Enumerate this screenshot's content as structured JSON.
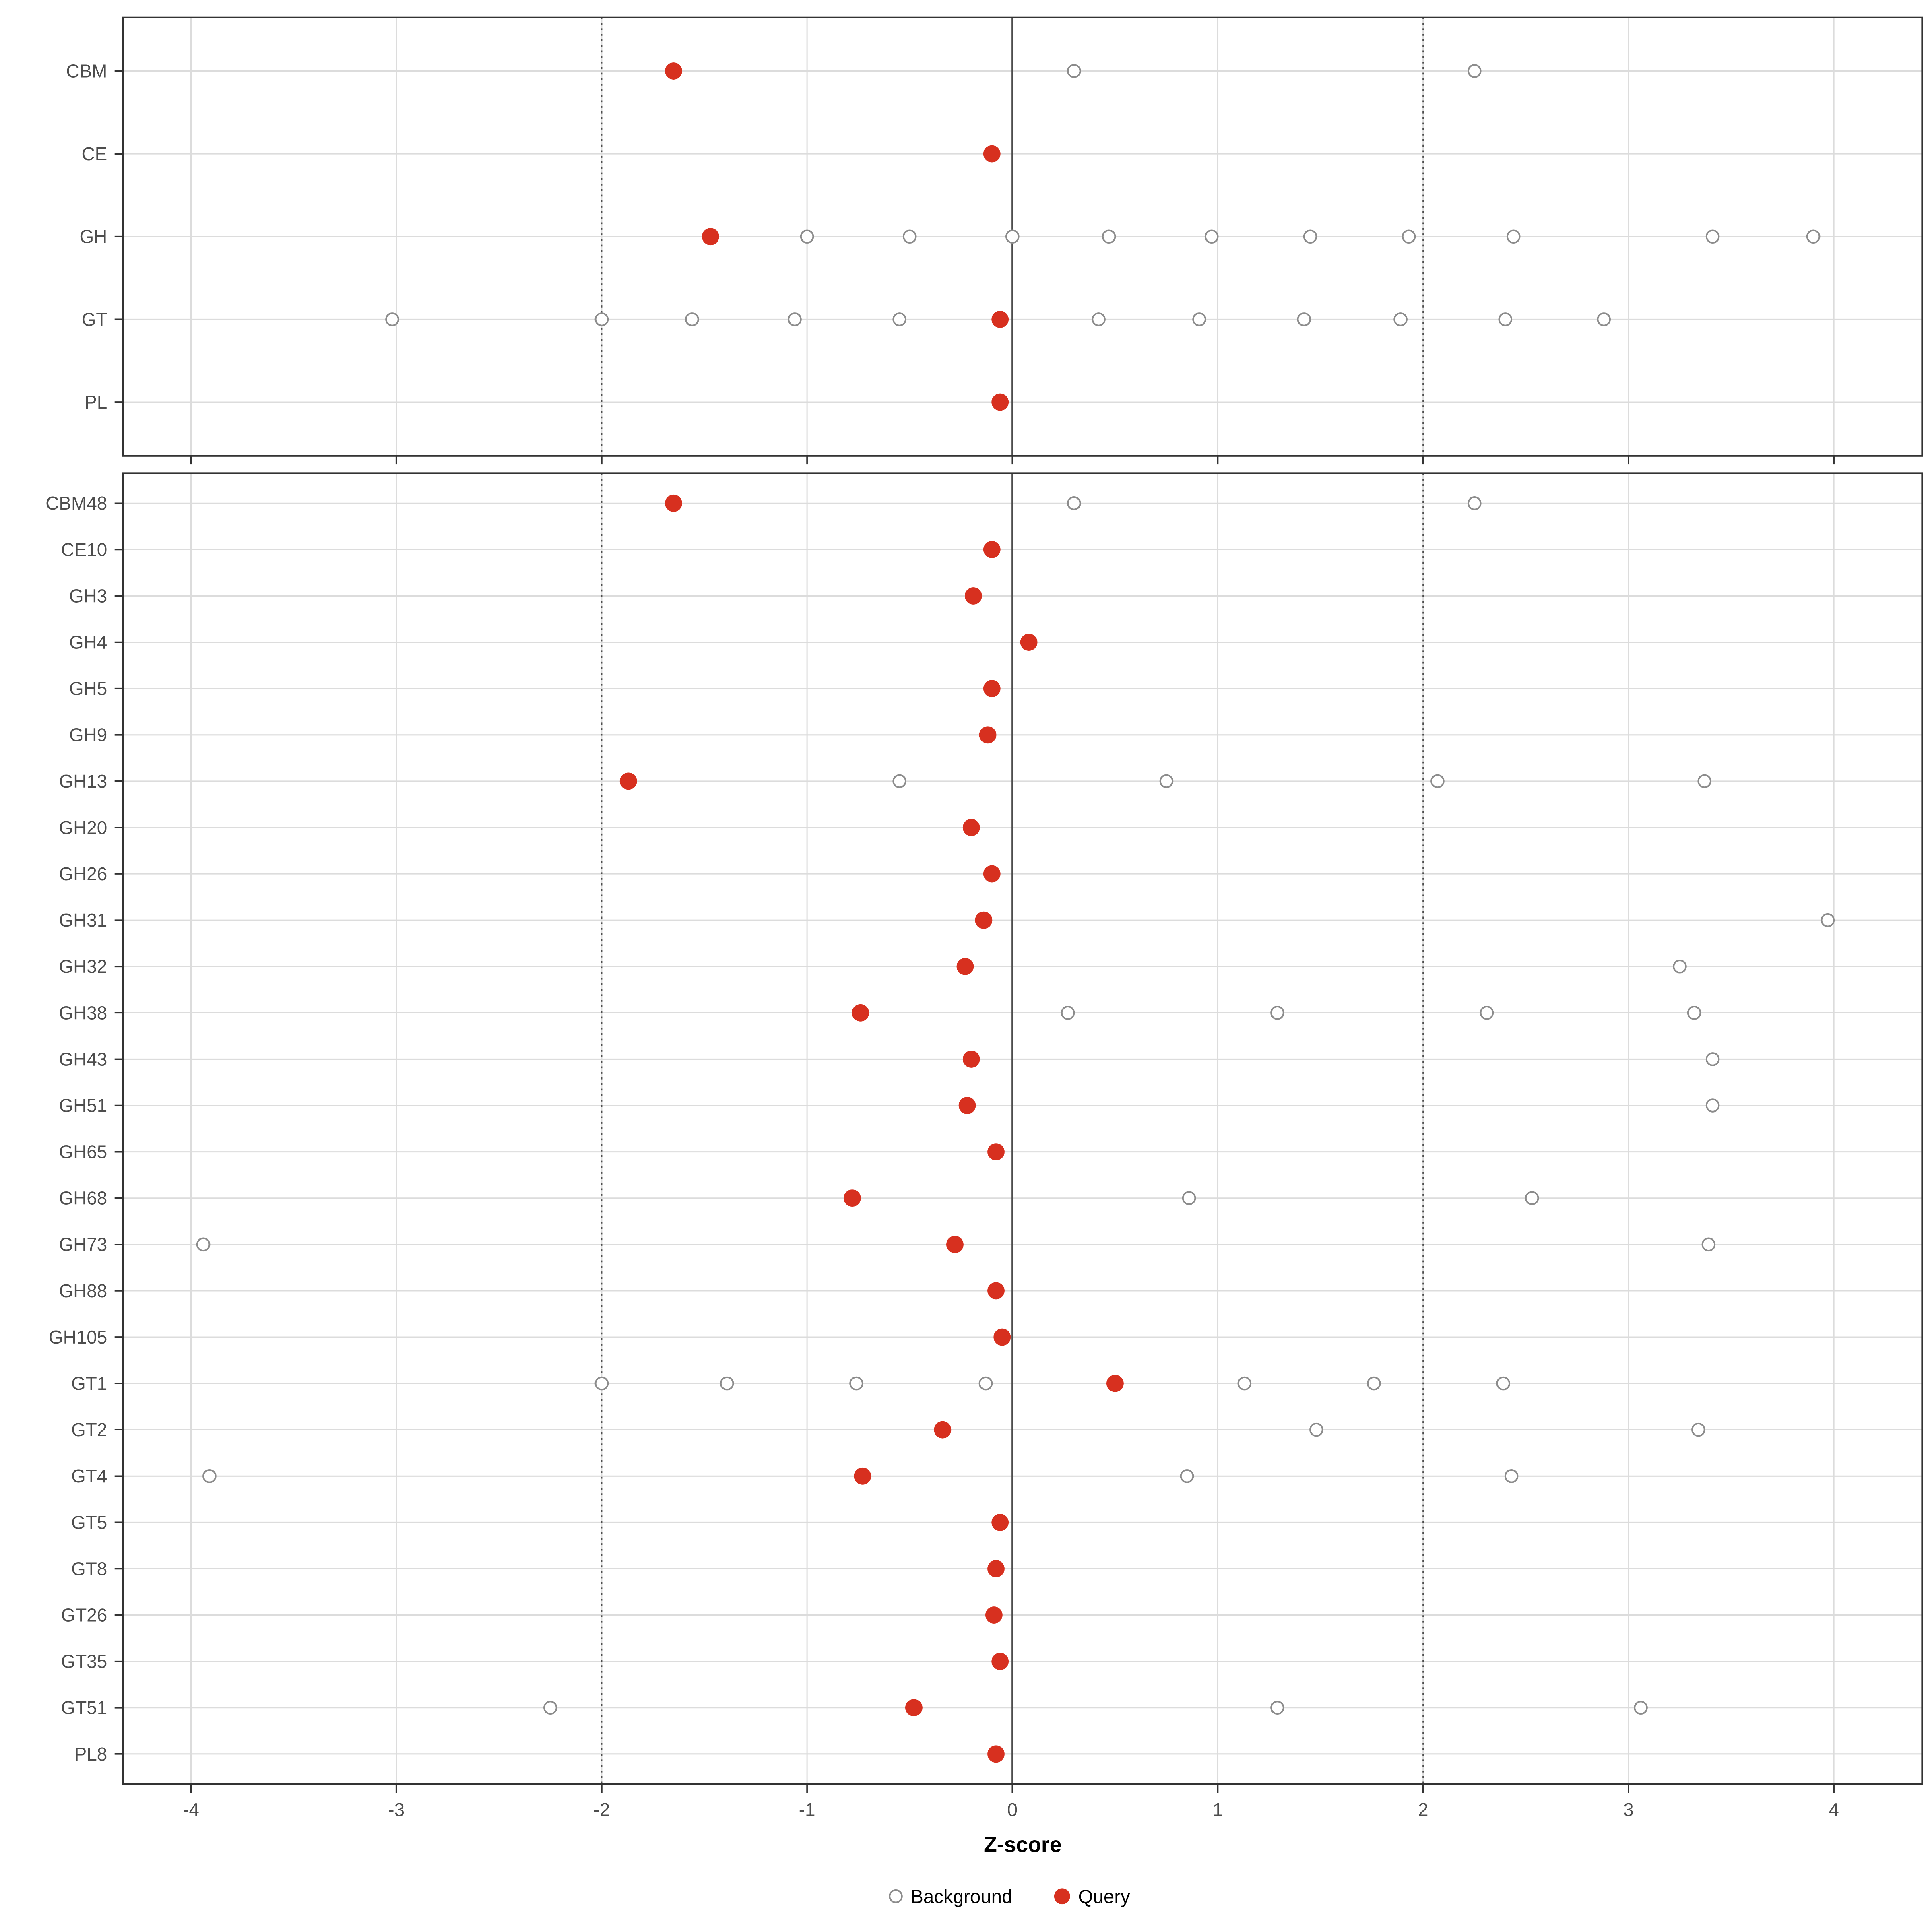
{
  "chart_data": {
    "type": "scatter",
    "title": "",
    "xlabel": "Z-score",
    "x_ticks": [
      -4,
      -3,
      -2,
      -1,
      0,
      1,
      2,
      3,
      4
    ],
    "x_domain": [
      -4.33,
      4.43
    ],
    "grid": true,
    "reference_lines": {
      "solid": [
        0
      ],
      "dotted": [
        -2,
        2
      ]
    },
    "legend": {
      "position": "bottom-center",
      "background_label": "Background",
      "query_label": "Query"
    },
    "colors": {
      "query": "#D7301F",
      "background_stroke": "#8C8C8C",
      "grid": "#DCDCDC",
      "ref_line": "#4D4D4D",
      "border": "#333333",
      "axis_text": "#4D4D4D"
    },
    "panels": [
      {
        "name": "groups",
        "rows": [
          {
            "label": "CBM",
            "query": -1.65,
            "background": [
              0.3,
              2.25
            ]
          },
          {
            "label": "CE",
            "query": -0.1,
            "background": []
          },
          {
            "label": "GH",
            "query": -1.47,
            "background": [
              -1.0,
              -0.5,
              0.0,
              0.47,
              0.97,
              1.45,
              1.93,
              2.44,
              3.41,
              3.9
            ]
          },
          {
            "label": "GT",
            "query": -0.06,
            "background": [
              -3.02,
              -2.0,
              -1.56,
              -1.06,
              -0.55,
              0.42,
              0.91,
              1.42,
              1.89,
              2.4,
              2.88
            ]
          },
          {
            "label": "PL",
            "query": -0.06,
            "background": []
          }
        ]
      },
      {
        "name": "families",
        "rows": [
          {
            "label": "CBM48",
            "query": -1.65,
            "background": [
              0.3,
              2.25
            ]
          },
          {
            "label": "CE10",
            "query": -0.1,
            "background": []
          },
          {
            "label": "GH3",
            "query": -0.19,
            "background": []
          },
          {
            "label": "GH4",
            "query": 0.08,
            "background": []
          },
          {
            "label": "GH5",
            "query": -0.1,
            "background": []
          },
          {
            "label": "GH9",
            "query": -0.12,
            "background": []
          },
          {
            "label": "GH13",
            "query": -1.87,
            "background": [
              -0.55,
              0.75,
              2.07,
              3.37
            ]
          },
          {
            "label": "GH20",
            "query": -0.2,
            "background": []
          },
          {
            "label": "GH26",
            "query": -0.1,
            "background": []
          },
          {
            "label": "GH31",
            "query": -0.14,
            "background": [
              3.97
            ]
          },
          {
            "label": "GH32",
            "query": -0.23,
            "background": [
              3.25
            ]
          },
          {
            "label": "GH38",
            "query": -0.74,
            "background": [
              0.27,
              1.29,
              2.31,
              3.32
            ]
          },
          {
            "label": "GH43",
            "query": -0.2,
            "background": [
              3.41
            ]
          },
          {
            "label": "GH51",
            "query": -0.22,
            "background": [
              3.41
            ]
          },
          {
            "label": "GH65",
            "query": -0.08,
            "background": []
          },
          {
            "label": "GH68",
            "query": -0.78,
            "background": [
              0.86,
              2.53
            ]
          },
          {
            "label": "GH73",
            "query": -0.28,
            "background": [
              -3.94,
              3.39
            ]
          },
          {
            "label": "GH88",
            "query": -0.08,
            "background": []
          },
          {
            "label": "GH105",
            "query": -0.05,
            "background": []
          },
          {
            "label": "GT1",
            "query": 0.5,
            "background": [
              -2.0,
              -1.39,
              -0.76,
              -0.13,
              1.13,
              1.76,
              2.39
            ]
          },
          {
            "label": "GT2",
            "query": -0.34,
            "background": [
              1.48,
              3.34
            ]
          },
          {
            "label": "GT4",
            "query": -0.73,
            "background": [
              -3.91,
              0.85,
              2.43
            ]
          },
          {
            "label": "GT5",
            "query": -0.06,
            "background": []
          },
          {
            "label": "GT8",
            "query": -0.08,
            "background": []
          },
          {
            "label": "GT26",
            "query": -0.09,
            "background": []
          },
          {
            "label": "GT35",
            "query": -0.06,
            "background": []
          },
          {
            "label": "GT51",
            "query": -0.48,
            "background": [
              -2.25,
              1.29,
              3.06
            ]
          },
          {
            "label": "PL8",
            "query": -0.08,
            "background": []
          }
        ]
      }
    ]
  }
}
